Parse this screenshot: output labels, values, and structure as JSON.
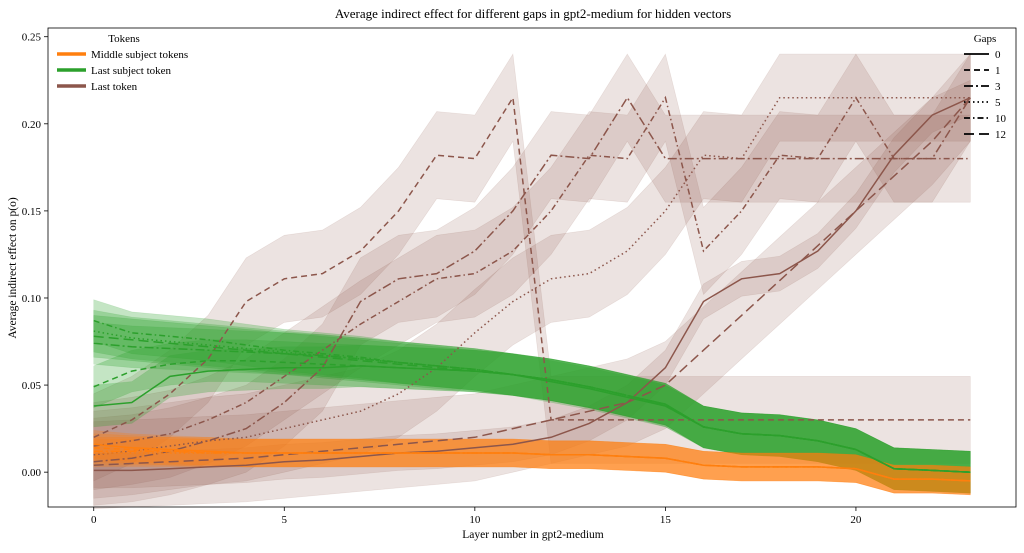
{
  "chart_data": {
    "type": "line",
    "title": "Average indirect effect for different gaps in gpt2-medium for hidden vectors",
    "xlabel": "Layer number in gpt2-medium",
    "ylabel": "Average indirect effect on p(o)",
    "xlim": [
      -1.2,
      24.2
    ],
    "ylim": [
      -0.02,
      0.255
    ],
    "xticks": [
      0,
      5,
      10,
      15,
      20
    ],
    "yticks": [
      0.0,
      0.05,
      0.1,
      0.15,
      0.2,
      0.25
    ],
    "ytick_labels": [
      "0.00",
      "0.05",
      "0.10",
      "0.15",
      "0.20",
      "0.25"
    ],
    "grid": false,
    "x": [
      0,
      1,
      2,
      3,
      4,
      5,
      6,
      7,
      8,
      9,
      10,
      11,
      12,
      13,
      14,
      15,
      16,
      17,
      18,
      19,
      20,
      21,
      22,
      23
    ],
    "token_legend": {
      "title": "Tokens",
      "placement": "top-left",
      "entries": [
        {
          "label": "Middle subject tokens",
          "color": "#ff7f0e"
        },
        {
          "label": "Last subject token",
          "color": "#2ca02c"
        },
        {
          "label": "Last token",
          "color": "#8c564b"
        }
      ]
    },
    "gap_legend": {
      "title": "Gaps",
      "placement": "top-right",
      "entries": [
        {
          "label": "0",
          "dash": "solid"
        },
        {
          "label": "1",
          "dash": "dashed"
        },
        {
          "label": "3",
          "dash": "dashdot-long"
        },
        {
          "label": "5",
          "dash": "dotted"
        },
        {
          "label": "10",
          "dash": "dashdot"
        },
        {
          "label": "12",
          "dash": "loosedash"
        }
      ]
    },
    "series": [
      {
        "token": "Last token",
        "gap": "0",
        "color": "#8c564b",
        "dash": "solid",
        "band": 0.01,
        "values": [
          0.001,
          0.001,
          0.002,
          0.003,
          0.004,
          0.006,
          0.007,
          0.009,
          0.011,
          0.012,
          0.014,
          0.016,
          0.02,
          0.028,
          0.04,
          0.06,
          0.098,
          0.111,
          0.114,
          0.127,
          0.15,
          0.182,
          0.205,
          0.215
        ]
      },
      {
        "token": "Last token",
        "gap": "1",
        "color": "#8c564b",
        "dash": "dashed",
        "band": 0.025,
        "values": [
          0.02,
          0.03,
          0.045,
          0.065,
          0.098,
          0.111,
          0.114,
          0.127,
          0.15,
          0.182,
          0.18,
          0.215,
          0.03,
          0.03,
          0.03,
          0.03,
          0.03,
          0.03,
          0.03,
          0.03,
          0.03,
          0.03,
          0.03,
          0.03
        ]
      },
      {
        "token": "Last token",
        "gap": "3",
        "color": "#8c564b",
        "dash": "dashdot-long",
        "band": 0.025,
        "values": [
          0.006,
          0.008,
          0.012,
          0.018,
          0.025,
          0.04,
          0.06,
          0.098,
          0.111,
          0.114,
          0.127,
          0.15,
          0.182,
          0.18,
          0.215,
          0.18,
          0.18,
          0.18,
          0.18,
          0.18,
          0.18,
          0.18,
          0.18,
          0.215
        ]
      },
      {
        "token": "Last token",
        "gap": "5",
        "color": "#8c564b",
        "dash": "dotted",
        "band": 0.025,
        "values": [
          0.01,
          0.012,
          0.015,
          0.018,
          0.02,
          0.025,
          0.03,
          0.035,
          0.045,
          0.06,
          0.08,
          0.098,
          0.111,
          0.114,
          0.127,
          0.15,
          0.182,
          0.18,
          0.215,
          0.215,
          0.215,
          0.215,
          0.215,
          0.215
        ]
      },
      {
        "token": "Last token",
        "gap": "10",
        "color": "#8c564b",
        "dash": "dashdot",
        "band": 0.025,
        "values": [
          0.015,
          0.018,
          0.022,
          0.03,
          0.04,
          0.055,
          0.07,
          0.085,
          0.098,
          0.111,
          0.114,
          0.127,
          0.15,
          0.182,
          0.18,
          0.215,
          0.127,
          0.15,
          0.182,
          0.18,
          0.215,
          0.18,
          0.18,
          0.18
        ]
      },
      {
        "token": "Last token",
        "gap": "12",
        "color": "#8c564b",
        "dash": "loosedash",
        "band": 0.025,
        "values": [
          0.004,
          0.005,
          0.006,
          0.007,
          0.008,
          0.01,
          0.012,
          0.014,
          0.016,
          0.018,
          0.02,
          0.025,
          0.03,
          0.035,
          0.04,
          0.05,
          0.07,
          0.09,
          0.11,
          0.13,
          0.15,
          0.17,
          0.19,
          0.215
        ]
      },
      {
        "token": "Last subject token",
        "gap": "0",
        "color": "#2ca02c",
        "dash": "solid",
        "band": 0.012,
        "values": [
          0.038,
          0.04,
          0.055,
          0.058,
          0.059,
          0.06,
          0.06,
          0.061,
          0.06,
          0.059,
          0.058,
          0.056,
          0.052,
          0.048,
          0.043,
          0.038,
          0.026,
          0.022,
          0.021,
          0.018,
          0.013,
          0.002,
          0.001,
          0.0
        ]
      },
      {
        "token": "Last subject token",
        "gap": "1",
        "color": "#2ca02c",
        "dash": "dashed",
        "band": 0.012,
        "values": [
          0.049,
          0.058,
          0.062,
          0.064,
          0.064,
          0.063,
          0.062,
          0.061,
          0.06,
          0.059,
          0.058,
          0.056,
          0.053,
          0.049,
          0.044,
          0.038,
          0.026,
          0.022,
          0.021,
          0.018,
          0.013,
          0.002,
          0.001,
          0.0
        ]
      },
      {
        "token": "Last subject token",
        "gap": "3",
        "color": "#2ca02c",
        "dash": "dashdot-long",
        "band": 0.012,
        "values": [
          0.074,
          0.072,
          0.071,
          0.07,
          0.069,
          0.068,
          0.067,
          0.065,
          0.063,
          0.061,
          0.059,
          0.056,
          0.053,
          0.049,
          0.044,
          0.039,
          0.026,
          0.022,
          0.021,
          0.018,
          0.013,
          0.002,
          0.001,
          0.0
        ]
      },
      {
        "token": "Last subject token",
        "gap": "5",
        "color": "#2ca02c",
        "dash": "dotted",
        "band": 0.012,
        "values": [
          0.081,
          0.077,
          0.075,
          0.073,
          0.071,
          0.069,
          0.067,
          0.065,
          0.063,
          0.061,
          0.059,
          0.056,
          0.053,
          0.049,
          0.044,
          0.039,
          0.026,
          0.022,
          0.021,
          0.018,
          0.013,
          0.002,
          0.001,
          0.0
        ]
      },
      {
        "token": "Last subject token",
        "gap": "10",
        "color": "#2ca02c",
        "dash": "dashdot",
        "band": 0.012,
        "values": [
          0.087,
          0.08,
          0.078,
          0.076,
          0.073,
          0.07,
          0.068,
          0.066,
          0.063,
          0.061,
          0.059,
          0.056,
          0.053,
          0.049,
          0.044,
          0.039,
          0.026,
          0.022,
          0.021,
          0.018,
          0.013,
          0.002,
          0.001,
          0.0
        ]
      },
      {
        "token": "Last subject token",
        "gap": "12",
        "color": "#2ca02c",
        "dash": "loosedash",
        "band": 0.012,
        "values": [
          0.078,
          0.076,
          0.074,
          0.072,
          0.07,
          0.068,
          0.066,
          0.064,
          0.062,
          0.06,
          0.058,
          0.056,
          0.053,
          0.049,
          0.044,
          0.039,
          0.026,
          0.022,
          0.021,
          0.018,
          0.013,
          0.002,
          0.001,
          0.0
        ]
      },
      {
        "token": "Middle subject tokens",
        "gap": "0",
        "color": "#ff7f0e",
        "dash": "solid",
        "band": 0.008,
        "values": [
          0.016,
          0.014,
          0.013,
          0.012,
          0.011,
          0.011,
          0.011,
          0.011,
          0.011,
          0.011,
          0.011,
          0.011,
          0.01,
          0.01,
          0.009,
          0.008,
          0.004,
          0.003,
          0.003,
          0.003,
          0.002,
          -0.004,
          -0.004,
          -0.005
        ]
      },
      {
        "token": "Middle subject tokens",
        "gap": "1",
        "color": "#ff7f0e",
        "dash": "dashed",
        "band": 0.008,
        "values": [
          0.014,
          0.013,
          0.012,
          0.012,
          0.011,
          0.011,
          0.011,
          0.011,
          0.011,
          0.011,
          0.011,
          0.011,
          0.01,
          0.01,
          0.009,
          0.008,
          0.004,
          0.003,
          0.003,
          0.003,
          0.002,
          -0.004,
          -0.004,
          -0.005
        ]
      },
      {
        "token": "Middle subject tokens",
        "gap": "3",
        "color": "#ff7f0e",
        "dash": "dashdot-long",
        "band": 0.008,
        "values": [
          0.012,
          0.012,
          0.012,
          0.011,
          0.011,
          0.011,
          0.011,
          0.011,
          0.011,
          0.011,
          0.011,
          0.011,
          0.01,
          0.01,
          0.009,
          0.008,
          0.004,
          0.003,
          0.003,
          0.003,
          0.002,
          -0.004,
          -0.004,
          -0.005
        ]
      },
      {
        "token": "Middle subject tokens",
        "gap": "5",
        "color": "#ff7f0e",
        "dash": "dotted",
        "band": 0.008,
        "values": [
          0.011,
          0.011,
          0.011,
          0.011,
          0.011,
          0.011,
          0.011,
          0.011,
          0.011,
          0.011,
          0.011,
          0.011,
          0.01,
          0.01,
          0.009,
          0.008,
          0.004,
          0.003,
          0.003,
          0.003,
          0.002,
          -0.004,
          -0.004,
          -0.005
        ]
      }
    ]
  }
}
